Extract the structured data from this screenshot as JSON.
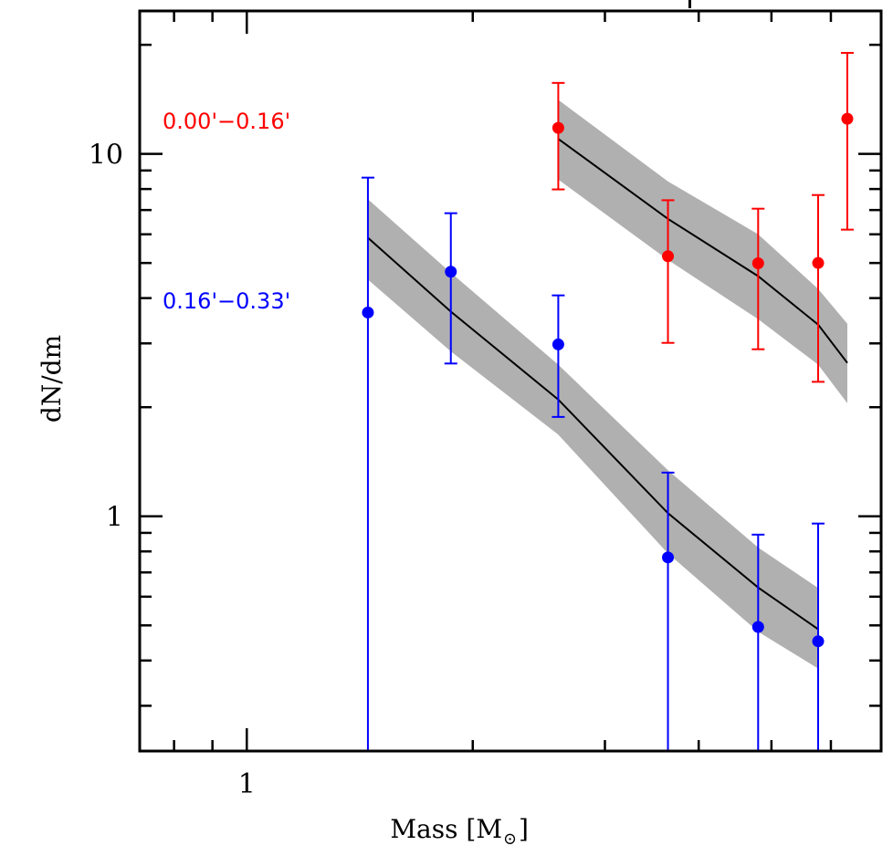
{
  "chart_data": {
    "type": "scatter",
    "title": "",
    "xlabel": "Mass [M",
    "xlabel_sub": "⊙",
    "xlabel_close": "]",
    "ylabel": "dN/dm",
    "xscale": "log",
    "yscale": "log",
    "xlim": [
      0.72,
      7.0
    ],
    "ylim": [
      0.225,
      24.8
    ],
    "x_major_ticks": [
      1
    ],
    "x_tick_labels": [
      "1"
    ],
    "x_minor_ticks": [
      0.8,
      0.9,
      2,
      3,
      4,
      5,
      6
    ],
    "y_major_ticks": [
      1,
      10
    ],
    "y_tick_labels": [
      "1",
      "10"
    ],
    "y_minor_ticks": [
      0.3,
      0.4,
      0.5,
      0.6,
      0.7,
      0.8,
      0.9,
      2,
      3,
      4,
      5,
      6,
      7,
      8,
      9,
      20
    ],
    "grid": false,
    "legend_placement": "left",
    "series": [
      {
        "name": "0.00'−0.16'",
        "color": "#ff0000",
        "points": [
          {
            "x": 2.6,
            "y": 11.8,
            "ylo": 7.98,
            "yhi": 15.7
          },
          {
            "x": 3.64,
            "y": 5.22,
            "ylo": 3.01,
            "yhi": 7.45
          },
          {
            "x": 4.8,
            "y": 4.99,
            "ylo": 2.89,
            "yhi": 7.06
          },
          {
            "x": 5.77,
            "y": 5.0,
            "ylo": 2.35,
            "yhi": 7.7
          },
          {
            "x": 6.31,
            "y": 12.5,
            "ylo": 6.18,
            "yhi": 19.0
          }
        ],
        "model": {
          "x": [
            2.6,
            3.64,
            4.8,
            5.77,
            6.31
          ],
          "y": [
            11.0,
            6.62,
            4.6,
            3.38,
            2.65
          ],
          "upper": [
            14.1,
            8.4,
            6.0,
            4.24,
            3.4
          ],
          "lower": [
            8.5,
            5.1,
            3.5,
            2.62,
            2.05
          ]
        }
      },
      {
        "name": "0.16'−0.33'",
        "color": "#0000ff",
        "points": [
          {
            "x": 1.45,
            "y": 3.65,
            "ylo": 0.2,
            "yhi": 8.6
          },
          {
            "x": 1.87,
            "y": 4.73,
            "ylo": 2.64,
            "yhi": 6.86
          },
          {
            "x": 2.6,
            "y": 2.98,
            "ylo": 1.88,
            "yhi": 4.07
          },
          {
            "x": 3.64,
            "y": 0.77,
            "ylo": 0.2,
            "yhi": 1.32
          },
          {
            "x": 4.8,
            "y": 0.495,
            "ylo": 0.2,
            "yhi": 0.89
          },
          {
            "x": 5.77,
            "y": 0.452,
            "ylo": 0.2,
            "yhi": 0.955
          }
        ],
        "model": {
          "x": [
            1.45,
            1.87,
            2.6,
            3.64,
            4.8,
            5.77
          ],
          "y": [
            5.87,
            3.67,
            2.1,
            1.02,
            0.636,
            0.488
          ],
          "upper": [
            7.5,
            4.7,
            2.62,
            1.34,
            0.82,
            0.634
          ],
          "lower": [
            4.5,
            2.85,
            1.68,
            0.79,
            0.48,
            0.38
          ]
        }
      }
    ],
    "model_line_color": "#000000",
    "model_band_color": "#b0b0b0"
  }
}
